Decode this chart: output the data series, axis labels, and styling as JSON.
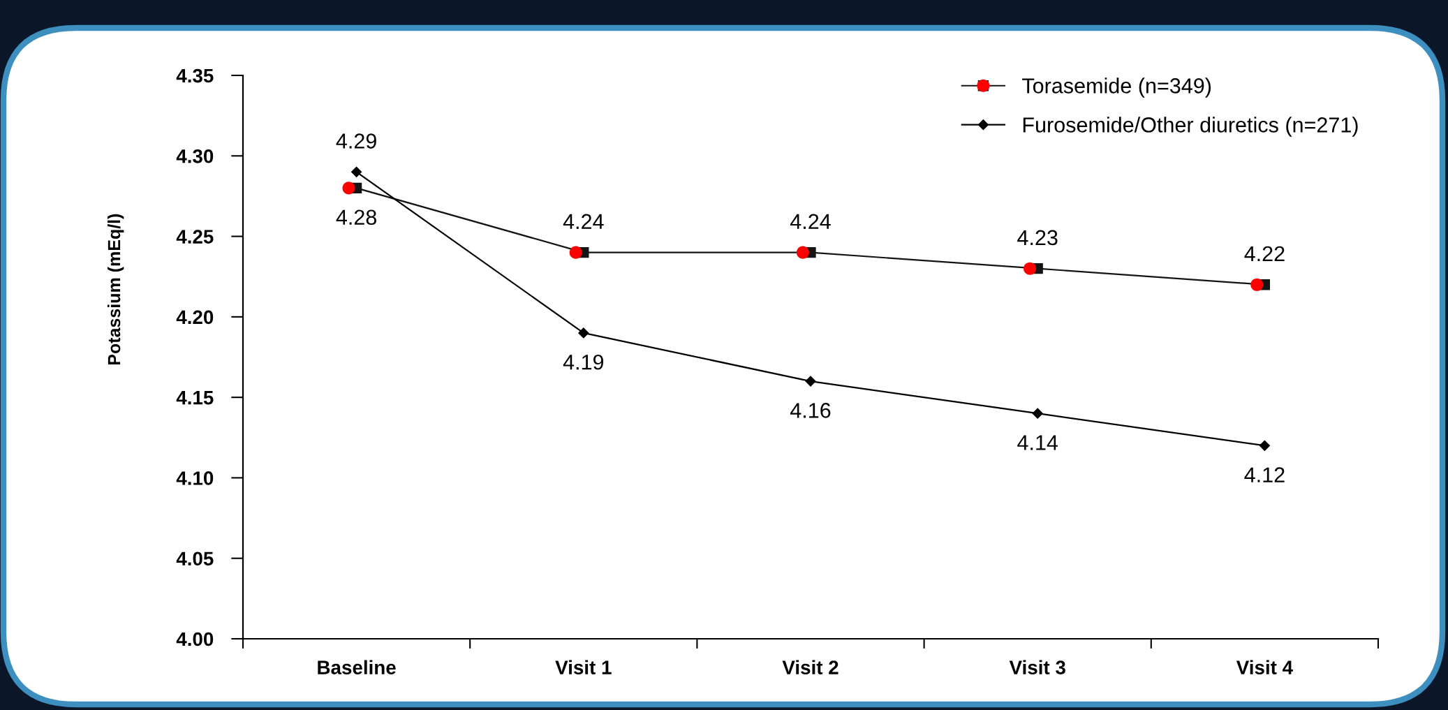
{
  "chart_data": {
    "type": "line",
    "ylabel": "Potassium (mEq/l)",
    "categories": [
      "Baseline",
      "Visit 1",
      "Visit 2",
      "Visit 3",
      "Visit 4"
    ],
    "series": [
      {
        "name": "Torasemide (n=349)",
        "color": "#141414",
        "marker": "square",
        "values": [
          4.28,
          4.24,
          4.24,
          4.23,
          4.22
        ],
        "value_labels": [
          "4.28",
          "4.24",
          "4.24",
          "4.23",
          "4.22"
        ]
      },
      {
        "type": "scatter",
        "color": "#ff0000",
        "marker": "circle",
        "values": [
          4.28,
          4.24,
          4.24,
          4.23,
          4.22
        ]
      },
      {
        "name": "Furosemide/Other diuretics (n=271)",
        "color": "#000000",
        "marker": "diamond",
        "values": [
          4.29,
          4.19,
          4.16,
          4.14,
          4.12
        ],
        "value_labels": [
          "4.29",
          "4.19",
          "4.16",
          "4.14",
          "4.12"
        ]
      }
    ],
    "ylim": [
      4.0,
      4.35
    ],
    "yticks": [
      {
        "value": 4.0,
        "label": "4.00"
      },
      {
        "value": 4.05,
        "label": "4.05"
      },
      {
        "value": 4.1,
        "label": "4.10"
      },
      {
        "value": 4.15,
        "label": "4.15"
      },
      {
        "value": 4.2,
        "label": "4.20"
      },
      {
        "value": 4.25,
        "label": "4.25"
      },
      {
        "value": 4.3,
        "label": "4.30"
      },
      {
        "value": 4.35,
        "label": "4.35"
      }
    ],
    "grid": false,
    "legend": "top right",
    "line_style": "solid"
  }
}
